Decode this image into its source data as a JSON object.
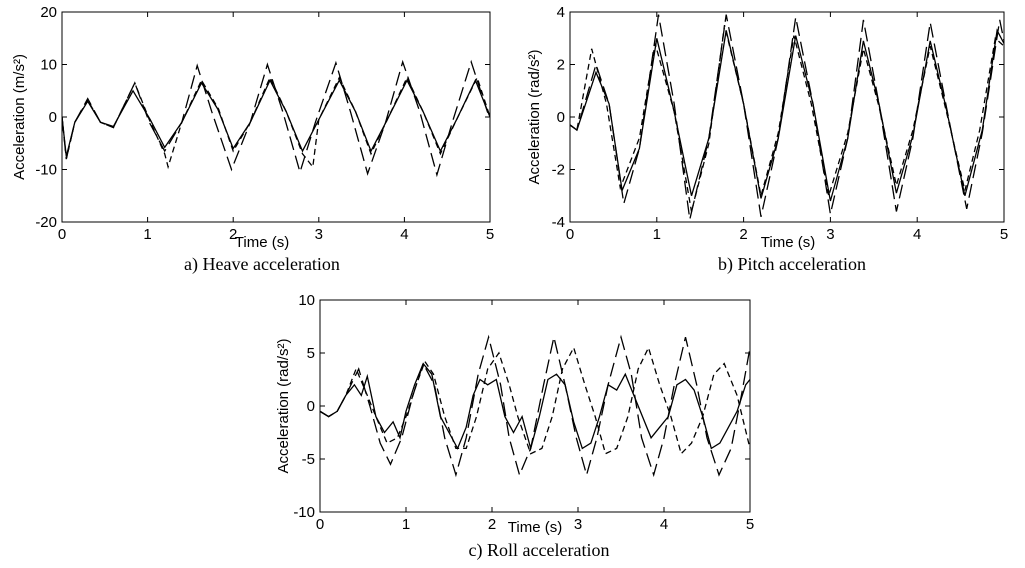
{
  "chart_data": [
    {
      "type": "line",
      "caption": "a) Heave acceleration",
      "xlabel": "Time (s)",
      "ylabel": "Acceleration (m/s²)",
      "xlim": [
        0,
        5
      ],
      "ylim": [
        -20,
        20
      ],
      "xticks": [
        "0",
        "1",
        "2",
        "3",
        "4",
        "5"
      ],
      "yticks": [
        "-20",
        "-10",
        "0",
        "10",
        "20"
      ],
      "series": [
        {
          "style": "solid",
          "x": [
            0,
            0.05,
            0.15,
            0.3,
            0.45,
            0.6,
            0.83,
            1.03,
            1.2,
            1.4,
            1.63,
            1.82,
            2.0,
            2.2,
            2.43,
            2.62,
            2.81,
            3.0,
            3.24,
            3.43,
            3.61,
            3.8,
            4.03,
            4.22,
            4.42,
            4.61,
            4.83,
            5.0
          ],
          "y": [
            0,
            -7.5,
            -1,
            3,
            -1,
            -1.8,
            5,
            -0.5,
            -5.8,
            -1,
            6.5,
            1.5,
            -6,
            -1,
            7,
            1,
            -6.5,
            -0.5,
            7,
            1,
            -6.5,
            -0.5,
            7,
            1,
            -6.5,
            -0.5,
            7,
            0
          ]
        },
        {
          "style": "dashed",
          "x": [
            0,
            0.05,
            0.15,
            0.3,
            0.45,
            0.6,
            0.85,
            1.02,
            1.2,
            1.24,
            1.4,
            1.63,
            1.83,
            2.0,
            2.2,
            2.43,
            2.62,
            2.81,
            2.93,
            3.0,
            3.24,
            3.43,
            3.61,
            3.8,
            4.03,
            4.22,
            4.42,
            4.61,
            4.85,
            5.0
          ],
          "y": [
            0,
            -8,
            -1,
            3.2,
            -1,
            -2,
            6.5,
            -0.5,
            -7,
            -9.5,
            -1,
            7,
            1.5,
            -6.5,
            -1,
            7.5,
            1,
            -7,
            -9.5,
            -0.5,
            7.5,
            1,
            -7,
            -0.5,
            7.5,
            1,
            -7,
            -0.5,
            7.5,
            0
          ]
        },
        {
          "style": "longdash",
          "x": [
            0,
            0.05,
            0.15,
            0.3,
            0.45,
            0.6,
            0.85,
            1.02,
            1.2,
            1.4,
            1.58,
            1.75,
            1.98,
            2.2,
            2.4,
            2.58,
            2.78,
            2.96,
            3.2,
            3.37,
            3.57,
            3.78,
            3.98,
            4.18,
            4.38,
            4.56,
            4.78,
            4.97,
            5.0
          ],
          "y": [
            0,
            -8,
            -1,
            3.5,
            -1,
            -2,
            6.5,
            -1,
            -6.5,
            -1,
            9.8,
            1,
            -10,
            -1,
            10,
            1,
            -10.5,
            -1,
            10.3,
            1,
            -10.8,
            -1,
            10.5,
            1,
            -11,
            -1,
            10.5,
            1,
            0
          ]
        }
      ]
    },
    {
      "type": "line",
      "caption": "b) Pitch acceleration",
      "xlabel": "Time (s)",
      "ylabel": "Acceleration (rad/s²)",
      "xlim": [
        0,
        5
      ],
      "ylim": [
        -4,
        4
      ],
      "xticks": [
        "0",
        "1",
        "2",
        "3",
        "4",
        "5"
      ],
      "yticks": [
        "-4",
        "-2",
        "0",
        "2",
        "4"
      ],
      "series": [
        {
          "style": "solid",
          "x": [
            0,
            0.08,
            0.3,
            0.45,
            0.6,
            0.8,
            1.0,
            1.2,
            1.4,
            1.6,
            1.8,
            2.0,
            2.2,
            2.4,
            2.6,
            2.8,
            3.0,
            3.2,
            3.38,
            3.56,
            3.76,
            3.95,
            4.15,
            4.33,
            4.55,
            4.75,
            4.92,
            5.0
          ],
          "y": [
            -0.3,
            -0.5,
            1.7,
            0.5,
            -2.8,
            -1.2,
            3.0,
            0.2,
            -3.0,
            -0.8,
            3.3,
            0.5,
            -3.1,
            -0.8,
            3.1,
            0.5,
            -3.2,
            -0.8,
            2.9,
            0.5,
            -2.9,
            -0.7,
            2.9,
            0.4,
            -3.0,
            -0.5,
            3.3,
            2.8
          ]
        },
        {
          "style": "dashed",
          "x": [
            0,
            0.08,
            0.25,
            0.42,
            0.58,
            0.8,
            0.98,
            1.2,
            1.4,
            1.6,
            1.78,
            2.0,
            2.2,
            2.4,
            2.58,
            2.78,
            2.98,
            3.2,
            3.38,
            3.56,
            3.76,
            3.95,
            4.15,
            4.33,
            4.55,
            4.72,
            4.9,
            5.0
          ],
          "y": [
            -0.3,
            -0.5,
            2.6,
            0.5,
            -2.7,
            -0.8,
            2.8,
            0.2,
            -3.6,
            -1.0,
            3.5,
            0.5,
            -3.0,
            -0.6,
            3.1,
            0.5,
            -3.0,
            -0.6,
            2.6,
            0.4,
            -2.6,
            -0.5,
            2.7,
            0.3,
            -2.8,
            -0.5,
            3.0,
            2.7
          ]
        },
        {
          "style": "longdash",
          "x": [
            0,
            0.08,
            0.3,
            0.45,
            0.62,
            0.8,
            1.02,
            1.2,
            1.38,
            1.6,
            1.8,
            2.0,
            2.2,
            2.4,
            2.6,
            2.8,
            3.0,
            3.2,
            3.38,
            3.56,
            3.76,
            3.95,
            4.15,
            4.33,
            4.57,
            4.75,
            4.95,
            5.0
          ],
          "y": [
            -0.3,
            -0.5,
            2.0,
            0.5,
            -3.3,
            -1.2,
            3.9,
            0.5,
            -3.9,
            -0.8,
            3.9,
            0.5,
            -3.8,
            -0.8,
            3.8,
            0.5,
            -3.7,
            -0.8,
            3.7,
            0.5,
            -3.6,
            -0.8,
            3.6,
            0.5,
            -3.5,
            -0.6,
            3.7,
            2.9
          ]
        }
      ]
    },
    {
      "type": "line",
      "caption": "c) Roll acceleration",
      "xlabel": "Time (s)",
      "ylabel": "Acceleration (rad/s²)",
      "xlim": [
        0,
        5
      ],
      "ylim": [
        -10,
        10
      ],
      "xticks": [
        "0",
        "1",
        "2",
        "3",
        "4",
        "5"
      ],
      "yticks": [
        "-10",
        "-5",
        "0",
        "5",
        "10"
      ],
      "series": [
        {
          "style": "solid",
          "x": [
            0,
            0.1,
            0.2,
            0.3,
            0.4,
            0.48,
            0.55,
            0.65,
            0.75,
            0.85,
            0.93,
            1.0,
            1.1,
            1.2,
            1.3,
            1.4,
            1.5,
            1.6,
            1.7,
            1.78,
            1.86,
            1.95,
            2.05,
            2.15,
            2.25,
            2.35,
            2.45,
            2.55,
            2.65,
            2.75,
            2.85,
            2.95,
            3.05,
            3.15,
            3.25,
            3.35,
            3.45,
            3.55,
            3.65,
            3.75,
            3.85,
            3.95,
            4.05,
            4.15,
            4.25,
            4.35,
            4.45,
            4.55,
            4.65,
            4.75,
            4.85,
            4.95,
            5.0
          ],
          "y": [
            -0.5,
            -1,
            -0.5,
            1,
            2,
            1,
            2.8,
            -1,
            -2.5,
            -1.5,
            -3,
            -0.5,
            2,
            4,
            3,
            -1,
            -2.5,
            -4,
            -2,
            1,
            2.5,
            2,
            2.5,
            -1,
            -2.5,
            -1,
            -4,
            -1,
            2.5,
            3,
            2,
            -1.5,
            -4,
            -3.5,
            -1,
            2,
            1.5,
            3,
            1,
            -1,
            -3,
            -2,
            -1,
            2,
            2.5,
            1.5,
            -1,
            -4,
            -3.5,
            -2,
            -0.5,
            2,
            2.5
          ]
        },
        {
          "style": "dashed",
          "x": [
            0,
            0.1,
            0.2,
            0.3,
            0.42,
            0.55,
            0.65,
            0.78,
            0.9,
            1.0,
            1.12,
            1.22,
            1.32,
            1.45,
            1.58,
            1.7,
            1.82,
            1.95,
            2.08,
            2.2,
            2.3,
            2.45,
            2.58,
            2.7,
            2.82,
            2.95,
            3.08,
            3.2,
            3.32,
            3.45,
            3.58,
            3.7,
            3.82,
            3.95,
            4.08,
            4.2,
            4.32,
            4.45,
            4.58,
            4.7,
            4.85,
            5.0
          ],
          "y": [
            -0.5,
            -1,
            -0.5,
            1,
            3.5,
            1,
            -1,
            -3.5,
            -3,
            -1,
            2,
            4.2,
            3,
            -1,
            -4,
            -4,
            -1,
            3.5,
            5,
            2,
            -1,
            -4.5,
            -4,
            -1,
            3.5,
            5.5,
            2,
            -1,
            -4.5,
            -4,
            -1,
            3.5,
            5.5,
            2,
            -1,
            -4.5,
            -3.5,
            -1,
            3,
            4,
            1,
            -4
          ]
        },
        {
          "style": "longdash",
          "x": [
            0,
            0.1,
            0.2,
            0.3,
            0.45,
            0.58,
            0.7,
            0.82,
            0.95,
            1.08,
            1.2,
            1.33,
            1.45,
            1.58,
            1.7,
            1.84,
            1.96,
            2.1,
            2.2,
            2.32,
            2.45,
            2.6,
            2.72,
            2.85,
            2.98,
            3.1,
            3.22,
            3.35,
            3.5,
            3.62,
            3.74,
            3.88,
            4.0,
            4.12,
            4.25,
            4.38,
            4.5,
            4.64,
            4.78,
            4.9,
            5.0
          ],
          "y": [
            -0.5,
            -1,
            -0.5,
            1,
            3.5,
            0,
            -3.5,
            -5.5,
            -3,
            1,
            4,
            2,
            -3,
            -6.5,
            -3,
            3,
            6.5,
            2,
            -3,
            -6.5,
            -4,
            2,
            6.5,
            2,
            -3,
            -6.5,
            -3,
            2,
            6.5,
            3,
            -3,
            -6.5,
            -3,
            2,
            6.5,
            2,
            -3,
            -6.5,
            -4,
            1,
            5.5
          ]
        }
      ]
    }
  ]
}
